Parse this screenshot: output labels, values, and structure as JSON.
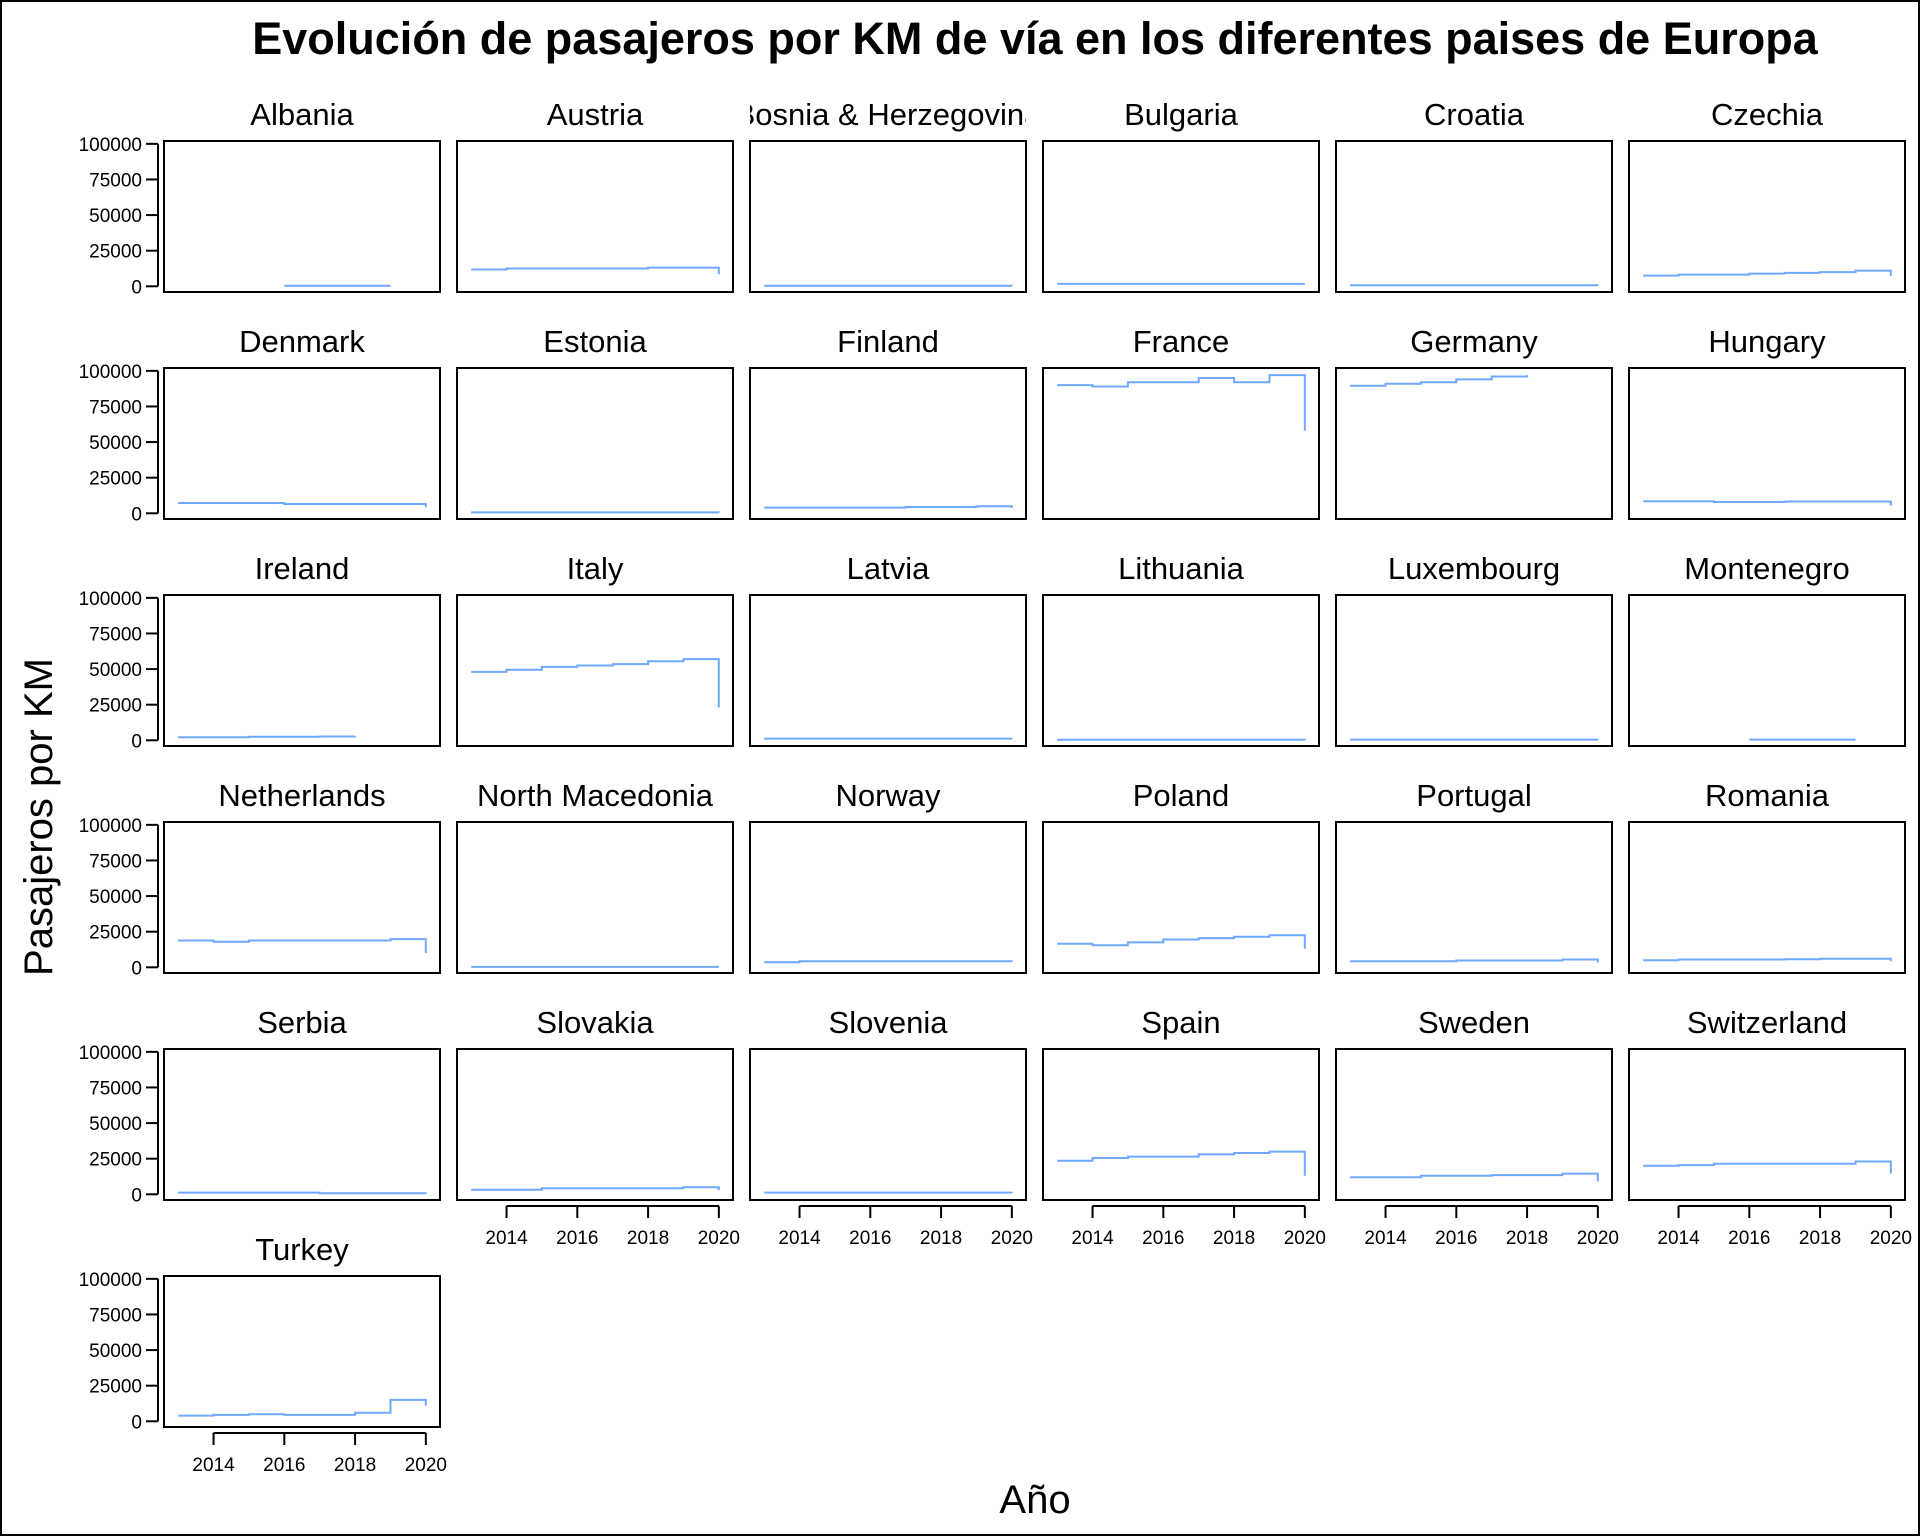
{
  "chart_data": {
    "type": "line",
    "title": "Evolución de pasajeros por KM de vía en los diferentes paises de Europa",
    "xlabel": "Año",
    "ylabel": "Pasajeros por KM",
    "xlim": [
      2012.6,
      2020.4
    ],
    "ylim": [
      -4000,
      102000
    ],
    "x_ticks": [
      2014,
      2016,
      2018,
      2020
    ],
    "y_ticks": [
      0,
      25000,
      50000,
      75000,
      100000
    ],
    "grid": false,
    "line_color": "#6fa8ff",
    "facets": [
      {
        "name": "Albania",
        "x": [
          2016,
          2017,
          2018,
          2019
        ],
        "values": [
          400,
          400,
          400,
          400
        ]
      },
      {
        "name": "Austria",
        "x": [
          2013,
          2014,
          2015,
          2016,
          2017,
          2018,
          2019,
          2020
        ],
        "values": [
          11800,
          12500,
          12500,
          12500,
          12500,
          13100,
          13100,
          8500
        ]
      },
      {
        "name": "Bosnia & Herzegovina",
        "x": [
          2013,
          2014,
          2015,
          2016,
          2017,
          2018,
          2019,
          2020
        ],
        "values": [
          400,
          400,
          400,
          400,
          400,
          400,
          400,
          300
        ]
      },
      {
        "name": "Bulgaria",
        "x": [
          2013,
          2014,
          2015,
          2016,
          2017,
          2018,
          2019,
          2020
        ],
        "values": [
          1700,
          1700,
          1700,
          1700,
          1700,
          1700,
          1700,
          1700
        ]
      },
      {
        "name": "Croatia",
        "x": [
          2013,
          2014,
          2015,
          2016,
          2017,
          2018,
          2019,
          2020
        ],
        "values": [
          800,
          800,
          800,
          800,
          800,
          800,
          800,
          700
        ]
      },
      {
        "name": "Czechia",
        "x": [
          2013,
          2014,
          2015,
          2016,
          2017,
          2018,
          2019,
          2020
        ],
        "values": [
          7500,
          8200,
          8200,
          8900,
          9400,
          10000,
          11000,
          7300
        ]
      },
      {
        "name": "Denmark",
        "x": [
          2013,
          2014,
          2015,
          2016,
          2017,
          2018,
          2019,
          2020
        ],
        "values": [
          7200,
          7200,
          7200,
          6500,
          6500,
          6500,
          6500,
          4200
        ]
      },
      {
        "name": "Estonia",
        "x": [
          2013,
          2014,
          2015,
          2016,
          2017,
          2018,
          2019,
          2020
        ],
        "values": [
          600,
          600,
          600,
          600,
          600,
          600,
          600,
          500
        ]
      },
      {
        "name": "Finland",
        "x": [
          2013,
          2014,
          2015,
          2016,
          2017,
          2018,
          2019,
          2020
        ],
        "values": [
          4000,
          4000,
          4000,
          4000,
          4400,
          4400,
          5000,
          3800
        ]
      },
      {
        "name": "France",
        "x": [
          2013,
          2014,
          2015,
          2016,
          2017,
          2018,
          2019,
          2020
        ],
        "values": [
          90000,
          89000,
          92000,
          92000,
          95000,
          92000,
          97000,
          58000
        ]
      },
      {
        "name": "Germany",
        "x": [
          2013,
          2014,
          2015,
          2016,
          2017,
          2018
        ],
        "values": [
          89500,
          91000,
          92000,
          94000,
          96000,
          97000
        ]
      },
      {
        "name": "Hungary",
        "x": [
          2013,
          2014,
          2015,
          2016,
          2017,
          2018,
          2019,
          2020
        ],
        "values": [
          8500,
          8500,
          7900,
          7900,
          8300,
          8300,
          8300,
          5400
        ]
      },
      {
        "name": "Ireland",
        "x": [
          2013,
          2014,
          2015,
          2016,
          2017,
          2018
        ],
        "values": [
          2100,
          2100,
          2500,
          2500,
          2700,
          2800
        ]
      },
      {
        "name": "Italy",
        "x": [
          2013,
          2014,
          2015,
          2016,
          2017,
          2018,
          2019,
          2020
        ],
        "values": [
          48000,
          49500,
          51500,
          52500,
          53500,
          55500,
          57000,
          23000
        ]
      },
      {
        "name": "Latvia",
        "x": [
          2013,
          2014,
          2015,
          2016,
          2017,
          2018,
          2019,
          2020
        ],
        "values": [
          1200,
          1200,
          1200,
          1200,
          1200,
          1200,
          1200,
          1000
        ]
      },
      {
        "name": "Lithuania",
        "x": [
          2013,
          2014,
          2015,
          2016,
          2017,
          2018,
          2019,
          2020
        ],
        "values": [
          400,
          400,
          400,
          400,
          400,
          400,
          400,
          300
        ]
      },
      {
        "name": "Luxembourg",
        "x": [
          2013,
          2014,
          2015,
          2016,
          2017,
          2018,
          2019,
          2020
        ],
        "values": [
          500,
          500,
          500,
          500,
          500,
          500,
          500,
          400
        ]
      },
      {
        "name": "Montenegro",
        "x": [
          2016,
          2017,
          2018,
          2019
        ],
        "values": [
          500,
          500,
          500,
          500
        ]
      },
      {
        "name": "Netherlands",
        "x": [
          2013,
          2014,
          2015,
          2016,
          2017,
          2018,
          2019,
          2020
        ],
        "values": [
          18800,
          18000,
          18800,
          18800,
          18800,
          18800,
          19800,
          10000
        ]
      },
      {
        "name": "North Macedonia",
        "x": [
          2013,
          2014,
          2015,
          2016,
          2017,
          2018,
          2019,
          2020
        ],
        "values": [
          300,
          300,
          300,
          300,
          300,
          300,
          300,
          300
        ]
      },
      {
        "name": "Norway",
        "x": [
          2013,
          2014,
          2015,
          2016,
          2017,
          2018,
          2019,
          2020
        ],
        "values": [
          3500,
          4300,
          4300,
          4300,
          4300,
          4300,
          4300,
          4000
        ]
      },
      {
        "name": "Poland",
        "x": [
          2013,
          2014,
          2015,
          2016,
          2017,
          2018,
          2019,
          2020
        ],
        "values": [
          16500,
          15500,
          17500,
          19500,
          20500,
          21500,
          22500,
          13000
        ]
      },
      {
        "name": "Portugal",
        "x": [
          2013,
          2014,
          2015,
          2016,
          2017,
          2018,
          2019,
          2020
        ],
        "values": [
          4300,
          4300,
          4300,
          4800,
          4800,
          4800,
          5500,
          3300
        ]
      },
      {
        "name": "Romania",
        "x": [
          2013,
          2014,
          2015,
          2016,
          2017,
          2018,
          2019,
          2020
        ],
        "values": [
          5000,
          5500,
          5500,
          5500,
          5700,
          6000,
          6000,
          4200
        ]
      },
      {
        "name": "Serbia",
        "x": [
          2013,
          2014,
          2015,
          2016,
          2017,
          2018,
          2019,
          2020
        ],
        "values": [
          1200,
          1200,
          1200,
          1200,
          700,
          700,
          700,
          500
        ]
      },
      {
        "name": "Slovakia",
        "x": [
          2013,
          2014,
          2015,
          2016,
          2017,
          2018,
          2019,
          2020
        ],
        "values": [
          3200,
          3200,
          4200,
          4200,
          4200,
          4200,
          5000,
          3000
        ]
      },
      {
        "name": "Slovenia",
        "x": [
          2013,
          2014,
          2015,
          2016,
          2017,
          2018,
          2019,
          2020
        ],
        "values": [
          1200,
          1200,
          1200,
          1200,
          1200,
          1200,
          1200,
          900
        ]
      },
      {
        "name": "Spain",
        "x": [
          2013,
          2014,
          2015,
          2016,
          2017,
          2018,
          2019,
          2020
        ],
        "values": [
          23500,
          25500,
          26500,
          26500,
          28000,
          29000,
          30000,
          13000
        ]
      },
      {
        "name": "Sweden",
        "x": [
          2013,
          2014,
          2015,
          2016,
          2017,
          2018,
          2019,
          2020
        ],
        "values": [
          12000,
          12000,
          13000,
          13000,
          13500,
          13500,
          14500,
          9000
        ]
      },
      {
        "name": "Switzerland",
        "x": [
          2013,
          2014,
          2015,
          2016,
          2017,
          2018,
          2019,
          2020
        ],
        "values": [
          20000,
          20500,
          21500,
          21500,
          21500,
          21500,
          23000,
          14500
        ]
      },
      {
        "name": "Turkey",
        "x": [
          2013,
          2014,
          2015,
          2016,
          2017,
          2018,
          2019,
          2020
        ],
        "values": [
          4000,
          4500,
          5000,
          4500,
          4500,
          6000,
          15000,
          11000
        ]
      }
    ]
  }
}
